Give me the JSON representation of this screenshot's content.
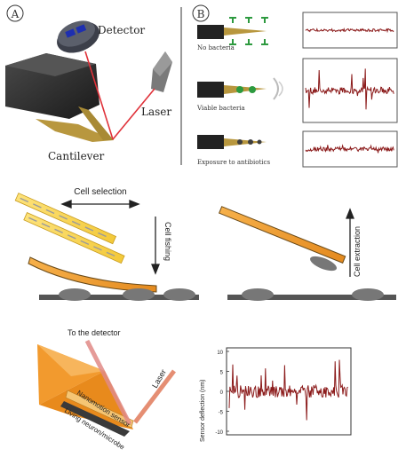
{
  "panel_a": {
    "marker": "A",
    "detector_label": "Detector",
    "laser_label": "Laser",
    "cantilever_label": "Cantilever"
  },
  "panel_b": {
    "marker": "B",
    "rows": [
      {
        "label": "No bacteria",
        "signal_level": "low"
      },
      {
        "label": "Viable bacteria",
        "signal_level": "high"
      },
      {
        "label": "Exposure to antibiotics",
        "signal_level": "medium"
      }
    ]
  },
  "selection_panel": {
    "cell_selection_label": "Cell selection",
    "cell_fishing_label": "Cell fishing",
    "cell_extraction_label": "Cell extraction"
  },
  "sensor_panel": {
    "detector_label": "To the detector",
    "laser_label": "Laser",
    "sensor_label": "Nanomotion sensor",
    "neuron_label": "Living neuron/microbe"
  },
  "trace_chart": {
    "ylabel": "Sensor deflection (nm)",
    "y_ticks": [
      "10",
      "5",
      "0",
      "-5",
      "-10"
    ]
  },
  "colors": {
    "trace": "#8b1a1a",
    "laser": "#e0323a",
    "cantilever_gold": "#b8973e",
    "beam_orange": "#f0a23a"
  }
}
